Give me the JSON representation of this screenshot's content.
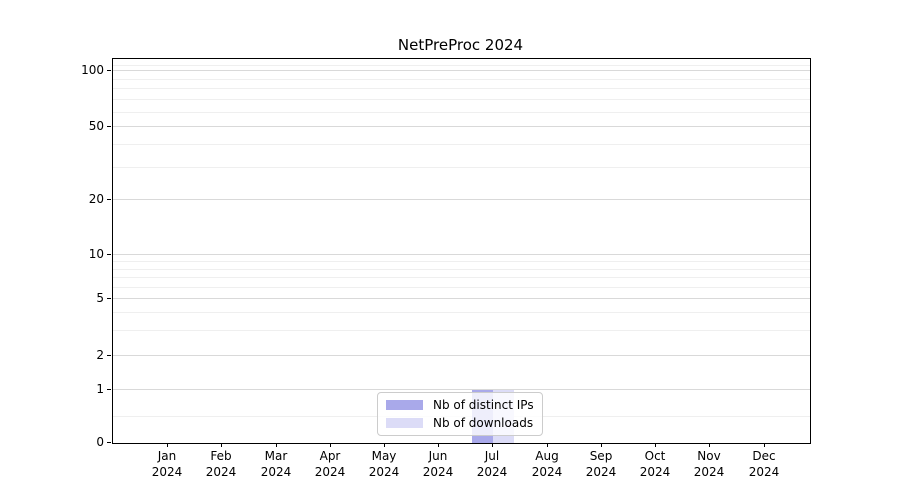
{
  "chart_data": {
    "type": "bar",
    "title": "NetPreProc 2024",
    "x_categories": [
      "Jan 2024",
      "Feb 2024",
      "Mar 2024",
      "Apr 2024",
      "May 2024",
      "Jun 2024",
      "Jul 2024",
      "Aug 2024",
      "Sep 2024",
      "Oct 2024",
      "Nov 2024",
      "Dec 2024"
    ],
    "series": [
      {
        "name": "Nb of distinct IPs",
        "color": "#a9a9ea",
        "values": [
          0,
          0,
          0,
          0,
          0,
          0,
          1,
          0,
          0,
          0,
          0,
          0
        ]
      },
      {
        "name": "Nb of downloads",
        "color": "#dcdcf7",
        "values": [
          0,
          0,
          0,
          0,
          0,
          0,
          1,
          0,
          0,
          0,
          0,
          0
        ]
      }
    ],
    "y_axis": {
      "scale": "log-like with zero baseline",
      "range_bottom": 0,
      "range_top": 100,
      "ticks": [
        {
          "v": 100,
          "f": 0.031
        },
        {
          "v": 50,
          "f": 0.177
        },
        {
          "v": 20,
          "f": 0.367
        },
        {
          "v": 10,
          "f": 0.51
        },
        {
          "v": 5,
          "f": 0.625
        },
        {
          "v": 2,
          "f": 0.773
        },
        {
          "v": 1,
          "f": 0.862
        },
        {
          "v": 0,
          "f": 1.0
        }
      ],
      "minor_fracs": [
        0.016,
        0.054,
        0.078,
        0.106,
        0.139,
        0.223,
        0.283,
        0.528,
        0.547,
        0.57,
        0.595,
        0.661,
        0.708,
        0.93
      ]
    },
    "x_axis": {
      "start_frac": 0.079,
      "step_frac": 0.0778
    },
    "bar_width_frac": 0.0308,
    "grid": "horizontal only",
    "legend": {
      "position": "inside bottom center",
      "entries": [
        "Nb of distinct IPs",
        "Nb of downloads"
      ]
    }
  }
}
